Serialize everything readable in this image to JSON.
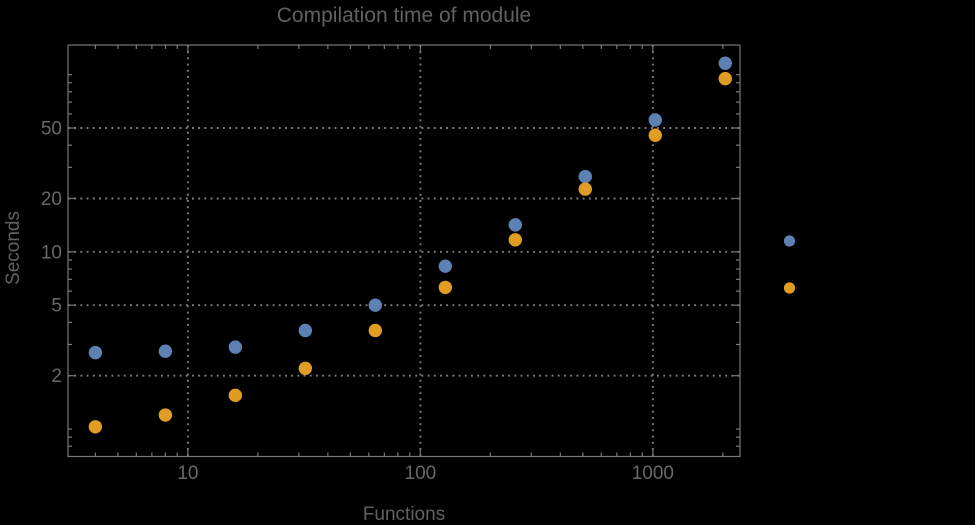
{
  "title": "Compilation time of module",
  "axes": {
    "xlabel": "Functions",
    "ylabel": "Seconds"
  },
  "colors": {
    "background": "#000000",
    "frame": "#787878",
    "grid": "#7d7d7d",
    "text": "#616161",
    "series_blue": "#5e81b5",
    "series_orange": "#e19c24"
  },
  "chart_data": {
    "type": "scatter",
    "title": "Compilation time of module",
    "xlabel": "Functions",
    "ylabel": "Seconds",
    "x_scale": "log",
    "y_scale": "log",
    "grid": true,
    "x": [
      4,
      8,
      16,
      32,
      64,
      128,
      256,
      512,
      1024,
      2048
    ],
    "series": [
      {
        "name": "series-blue",
        "color": "#5e81b5",
        "values": [
          2.7,
          2.75,
          2.9,
          3.6,
          5.0,
          8.3,
          14.2,
          26.6,
          55.5,
          116
        ]
      },
      {
        "name": "series-orange",
        "color": "#e19c24",
        "values": [
          1.03,
          1.2,
          1.55,
          2.2,
          3.6,
          6.3,
          11.7,
          22.6,
          45.5,
          95
        ]
      }
    ],
    "x_ticks_labeled": [
      10,
      100,
      1000
    ],
    "y_ticks_labeled": [
      2,
      5,
      10,
      20,
      50
    ],
    "x_gridlines": [
      10,
      100,
      1000
    ],
    "y_gridlines": [
      2,
      5,
      10,
      20,
      50
    ],
    "xlim": [
      3.05,
      2370
    ],
    "ylim": [
      0.7,
      147
    ],
    "legend": {
      "position": "right-outside",
      "markers_only": true,
      "marker_colors": [
        "#5e81b5",
        "#e19c24"
      ]
    }
  }
}
